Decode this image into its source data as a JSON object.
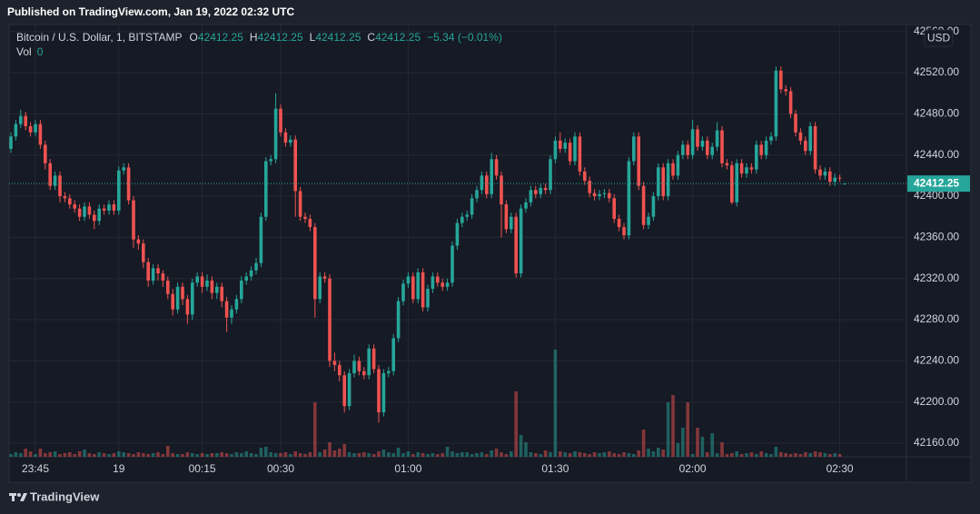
{
  "published": "Published on TradingView.com, Jan 19, 2022 02:32 UTC",
  "footer": "TradingView",
  "chart_data": {
    "type": "candlestick",
    "title": "Bitcoin / U.S. Dollar, 1, BITSTAMP",
    "ohlc_labels": [
      "O",
      "H",
      "L",
      "C"
    ],
    "change": "−5.34 (−0.01%)",
    "volume_label": "Vol",
    "currency": "USD",
    "up_color": "#26a69a",
    "down_color": "#ef5350",
    "grid": true,
    "ylim": [
      42146.8,
      42566.8
    ],
    "yticks": [
      {
        "value": 42160,
        "label": "42160.00"
      },
      {
        "value": 42200,
        "label": "42200.00"
      },
      {
        "value": 42240,
        "label": "42240.00"
      },
      {
        "value": 42280,
        "label": "42280.00"
      },
      {
        "value": 42320,
        "label": "42320.00"
      },
      {
        "value": 42360,
        "label": "42360.00"
      },
      {
        "value": 42400,
        "label": "42400.00"
      },
      {
        "value": 42440,
        "label": "42440.00"
      },
      {
        "value": 42480,
        "label": "42480.00"
      },
      {
        "value": 42520,
        "label": "42520.00"
      },
      {
        "value": 42560,
        "label": "42560.00"
      }
    ],
    "categories": [
      null,
      null,
      null,
      null,
      null,
      "23:45",
      null,
      null,
      null,
      null,
      null,
      null,
      null,
      null,
      null,
      null,
      null,
      null,
      null,
      null,
      null,
      null,
      "19",
      null,
      null,
      null,
      null,
      null,
      null,
      null,
      null,
      null,
      null,
      null,
      null,
      null,
      null,
      null,
      null,
      "00:15",
      null,
      null,
      null,
      null,
      null,
      null,
      null,
      null,
      null,
      null,
      null,
      null,
      null,
      null,
      null,
      "00:30",
      null,
      null,
      null,
      null,
      null,
      null,
      null,
      null,
      null,
      null,
      null,
      null,
      null,
      null,
      null,
      null,
      null,
      null,
      null,
      null,
      null,
      null,
      null,
      null,
      null,
      "01:00",
      null,
      null,
      null,
      null,
      null,
      null,
      null,
      null,
      null,
      null,
      null,
      null,
      null,
      null,
      null,
      null,
      null,
      null,
      null,
      null,
      null,
      null,
      null,
      null,
      null,
      null,
      null,
      null,
      null,
      "01:30",
      null,
      null,
      null,
      null,
      null,
      null,
      null,
      null,
      null,
      null,
      null,
      null,
      null,
      null,
      null,
      null,
      null,
      null,
      null,
      null,
      null,
      null,
      null,
      null,
      null,
      null,
      null,
      "02:00",
      null,
      null,
      null,
      null,
      null,
      null,
      null,
      null,
      null,
      null,
      null,
      null,
      null,
      null,
      null,
      null,
      null,
      null,
      null,
      null,
      null,
      null,
      null,
      null,
      null,
      null,
      null,
      null,
      null,
      "02:30",
      null
    ],
    "open": [
      42446,
      42458,
      42470,
      42478,
      42468,
      42462,
      42470,
      42450,
      42432,
      42410,
      42420,
      42400,
      42398,
      42392,
      42388,
      42380,
      42390,
      42382,
      42376,
      42388,
      42386,
      42392,
      42386,
      42425,
      42428,
      42396,
      42358,
      42354,
      42336,
      42318,
      42330,
      42325,
      42318,
      42305,
      42290,
      42312,
      42300,
      42285,
      42316,
      42322,
      42312,
      42318,
      42306,
      42312,
      42298,
      42282,
      42290,
      42300,
      42318,
      42322,
      42328,
      42335,
      42380,
      42434,
      42436,
      42485,
      42462,
      42452,
      42455,
      42405,
      42380,
      42378,
      42370,
      42300,
      42322,
      42320,
      42240,
      42236,
      42226,
      42196,
      42228,
      42240,
      42230,
      42226,
      42252,
      42232,
      42190,
      42228,
      42230,
      42262,
      42298,
      42315,
      42322,
      42300,
      42326,
      42292,
      42310,
      42322,
      42316,
      42312,
      42316,
      42352,
      42374,
      42380,
      42382,
      42398,
      42406,
      42420,
      42402,
      42436,
      42420,
      42392,
      42368,
      42380,
      42325,
      42388,
      42394,
      42406,
      42402,
      42408,
      42406,
      42436,
      42454,
      42446,
      42452,
      42434,
      42458,
      42424,
      42415,
      42403,
      42400,
      42402,
      42403,
      42398,
      42378,
      42370,
      42362,
      42434,
      42458,
      42410,
      42372,
      42380,
      42400,
      42428,
      42400,
      42432,
      42420,
      42440,
      42450,
      42440,
      42465,
      42448,
      42454,
      42440,
      42448,
      42464,
      42432,
      42430,
      42394,
      42432,
      42422,
      42428,
      42426,
      42450,
      42440,
      42454,
      42458,
      42522,
      42504,
      42502,
      42480,
      42462,
      42454,
      42444,
      42468,
      42426,
      42420,
      42424,
      42414,
      42418,
      42412.25
    ],
    "high": [
      42462,
      42474,
      42484,
      42482,
      42472,
      42474,
      42474,
      42454,
      42436,
      42424,
      42424,
      42404,
      42402,
      42396,
      42392,
      42394,
      42394,
      42386,
      42392,
      42392,
      42396,
      42396,
      42429,
      42432,
      42432,
      42400,
      42362,
      42358,
      42340,
      42334,
      42334,
      42328,
      42322,
      42310,
      42316,
      42316,
      42304,
      42320,
      42326,
      42326,
      42324,
      42322,
      42316,
      42316,
      42302,
      42294,
      42304,
      42322,
      42326,
      42332,
      42340,
      42384,
      42438,
      42440,
      42500,
      42489,
      42466,
      42459,
      42459,
      42409,
      42384,
      42382,
      42374,
      42326,
      42326,
      42324,
      42248,
      42240,
      42230,
      42232,
      42246,
      42244,
      42234,
      42256,
      42256,
      42236,
      42232,
      42234,
      42266,
      42302,
      42319,
      42326,
      42326,
      42330,
      42330,
      42314,
      42326,
      42326,
      42320,
      42320,
      42356,
      42378,
      42384,
      42386,
      42402,
      42410,
      42424,
      42424,
      42442,
      42440,
      42424,
      42396,
      42384,
      42384,
      42392,
      42398,
      42410,
      42410,
      42412,
      42412,
      42440,
      42458,
      42462,
      42456,
      42456,
      42462,
      42462,
      42428,
      42419,
      42407,
      42406,
      42407,
      42407,
      42402,
      42382,
      42374,
      42438,
      42462,
      42462,
      42414,
      42384,
      42404,
      42432,
      42432,
      42436,
      42436,
      42444,
      42454,
      42454,
      42474,
      42469,
      42458,
      42458,
      42452,
      42472,
      42468,
      42436,
      42434,
      42436,
      42436,
      42432,
      42432,
      42454,
      42454,
      42458,
      42462,
      42526,
      42526,
      42508,
      42506,
      42484,
      42466,
      42458,
      42472,
      42472,
      42430,
      42428,
      42428,
      42422,
      42421,
      42412.25
    ],
    "low": [
      42442,
      42454,
      42466,
      42464,
      42458,
      42458,
      42446,
      42426,
      42406,
      42406,
      42394,
      42394,
      42388,
      42384,
      42376,
      42376,
      42378,
      42368,
      42372,
      42382,
      42382,
      42382,
      42382,
      42421,
      42392,
      42350,
      42348,
      42330,
      42312,
      42314,
      42318,
      42312,
      42300,
      42284,
      42286,
      42294,
      42276,
      42280,
      42312,
      42306,
      42308,
      42300,
      42300,
      42292,
      42268,
      42276,
      42286,
      42296,
      42314,
      42318,
      42324,
      42331,
      42376,
      42430,
      42432,
      42458,
      42448,
      42448,
      42380,
      42376,
      42374,
      42366,
      42282,
      42296,
      42316,
      42234,
      42230,
      42220,
      42190,
      42192,
      42224,
      42226,
      42222,
      42222,
      42228,
      42180,
      42186,
      42224,
      42226,
      42258,
      42294,
      42311,
      42296,
      42296,
      42288,
      42288,
      42306,
      42312,
      42308,
      42308,
      42312,
      42348,
      42370,
      42376,
      42378,
      42394,
      42402,
      42398,
      42398,
      42416,
      42360,
      42364,
      42364,
      42321,
      42321,
      42384,
      42390,
      42398,
      42398,
      42402,
      42402,
      42432,
      42442,
      42442,
      42430,
      42430,
      42420,
      42411,
      42399,
      42396,
      42396,
      42398,
      42394,
      42374,
      42366,
      42358,
      42358,
      42430,
      42406,
      42368,
      42368,
      42376,
      42396,
      42396,
      42396,
      42416,
      42416,
      42436,
      42436,
      42436,
      42444,
      42444,
      42436,
      42436,
      42444,
      42428,
      42426,
      42392,
      42390,
      42418,
      42418,
      42422,
      42422,
      42436,
      42436,
      42450,
      42454,
      42500,
      42498,
      42476,
      42458,
      42450,
      42440,
      42440,
      42422,
      42416,
      42416,
      42410,
      42410,
      42414,
      42412.25
    ],
    "close": [
      42458,
      42470,
      42478,
      42468,
      42462,
      42470,
      42450,
      42432,
      42410,
      42420,
      42400,
      42398,
      42392,
      42388,
      42380,
      42390,
      42382,
      42376,
      42388,
      42386,
      42392,
      42386,
      42425,
      42428,
      42396,
      42358,
      42354,
      42336,
      42318,
      42330,
      42325,
      42318,
      42305,
      42290,
      42312,
      42300,
      42285,
      42316,
      42322,
      42312,
      42318,
      42306,
      42312,
      42298,
      42282,
      42290,
      42300,
      42318,
      42322,
      42328,
      42335,
      42380,
      42434,
      42436,
      42485,
      42462,
      42452,
      42455,
      42405,
      42380,
      42378,
      42370,
      42300,
      42322,
      42320,
      42240,
      42236,
      42226,
      42196,
      42228,
      42240,
      42230,
      42226,
      42252,
      42232,
      42190,
      42228,
      42230,
      42262,
      42298,
      42315,
      42322,
      42300,
      42326,
      42292,
      42310,
      42322,
      42316,
      42312,
      42316,
      42352,
      42374,
      42380,
      42382,
      42398,
      42406,
      42420,
      42402,
      42436,
      42420,
      42392,
      42368,
      42380,
      42325,
      42388,
      42394,
      42406,
      42402,
      42408,
      42406,
      42436,
      42454,
      42446,
      42452,
      42434,
      42458,
      42424,
      42415,
      42403,
      42400,
      42402,
      42403,
      42398,
      42378,
      42370,
      42362,
      42434,
      42458,
      42410,
      42372,
      42380,
      42400,
      42428,
      42400,
      42432,
      42420,
      42440,
      42450,
      42440,
      42465,
      42448,
      42454,
      42440,
      42448,
      42464,
      42432,
      42430,
      42394,
      42432,
      42422,
      42428,
      42426,
      42450,
      42440,
      42454,
      42458,
      42522,
      42504,
      42502,
      42480,
      42462,
      42454,
      42444,
      42468,
      42426,
      42420,
      42424,
      42414,
      42418,
      42417.59,
      42412.25
    ],
    "volume": [
      0.3,
      0.5,
      0.4,
      0.9,
      0.6,
      0.3,
      0.9,
      0.4,
      0.5,
      0.6,
      0.3,
      0.4,
      0.5,
      0.3,
      0.6,
      0.8,
      0.4,
      0.3,
      0.5,
      0.4,
      0.3,
      0.4,
      0.6,
      0.5,
      0.4,
      0.3,
      0.5,
      0.4,
      0.3,
      0.4,
      0.5,
      0.3,
      1.2,
      0.4,
      0.3,
      0.3,
      0.5,
      0.4,
      0.3,
      0.4,
      0.3,
      0.4,
      0.4,
      0.5,
      0.4,
      0.3,
      0.5,
      0.4,
      0.6,
      0.4,
      0.3,
      1.0,
      1.1,
      0.5,
      0.4,
      0.4,
      0.5,
      0.3,
      0.6,
      0.4,
      0.3,
      0.5,
      6.0,
      0.5,
      0.8,
      1.6,
      0.7,
      0.9,
      1.4,
      0.5,
      0.4,
      0.4,
      0.5,
      0.4,
      0.3,
      0.6,
      0.8,
      0.5,
      0.4,
      1.0,
      0.4,
      0.6,
      0.3,
      0.5,
      0.4,
      0.3,
      0.4,
      0.3,
      0.4,
      1.1,
      0.6,
      0.4,
      0.5,
      0.5,
      0.3,
      0.4,
      0.5,
      0.3,
      0.7,
      0.9,
      0.5,
      0.3,
      0.6,
      7.2,
      2.4,
      1.6,
      0.5,
      0.4,
      0.3,
      0.7,
      0.5,
      11.8,
      0.6,
      0.5,
      0.4,
      0.6,
      0.5,
      0.4,
      0.3,
      0.5,
      0.4,
      0.5,
      0.6,
      0.4,
      0.3,
      0.5,
      0.4,
      0.3,
      0.7,
      3.0,
      0.9,
      0.6,
      1.0,
      0.8,
      6.0,
      6.8,
      1.5,
      3.2,
      6.0,
      0.3,
      3.2,
      2.2,
      0.5,
      2.6,
      0.4,
      1.6,
      0.3,
      0.4,
      0.6,
      0.3,
      0.4,
      0.5,
      0.3,
      0.6,
      0.4,
      0.3,
      1.1,
      0.5,
      0.4,
      0.3,
      0.4,
      0.3,
      0.5,
      0.4,
      0.6,
      0.5,
      0.4,
      0.3,
      0.4,
      0.3,
      0
    ]
  }
}
